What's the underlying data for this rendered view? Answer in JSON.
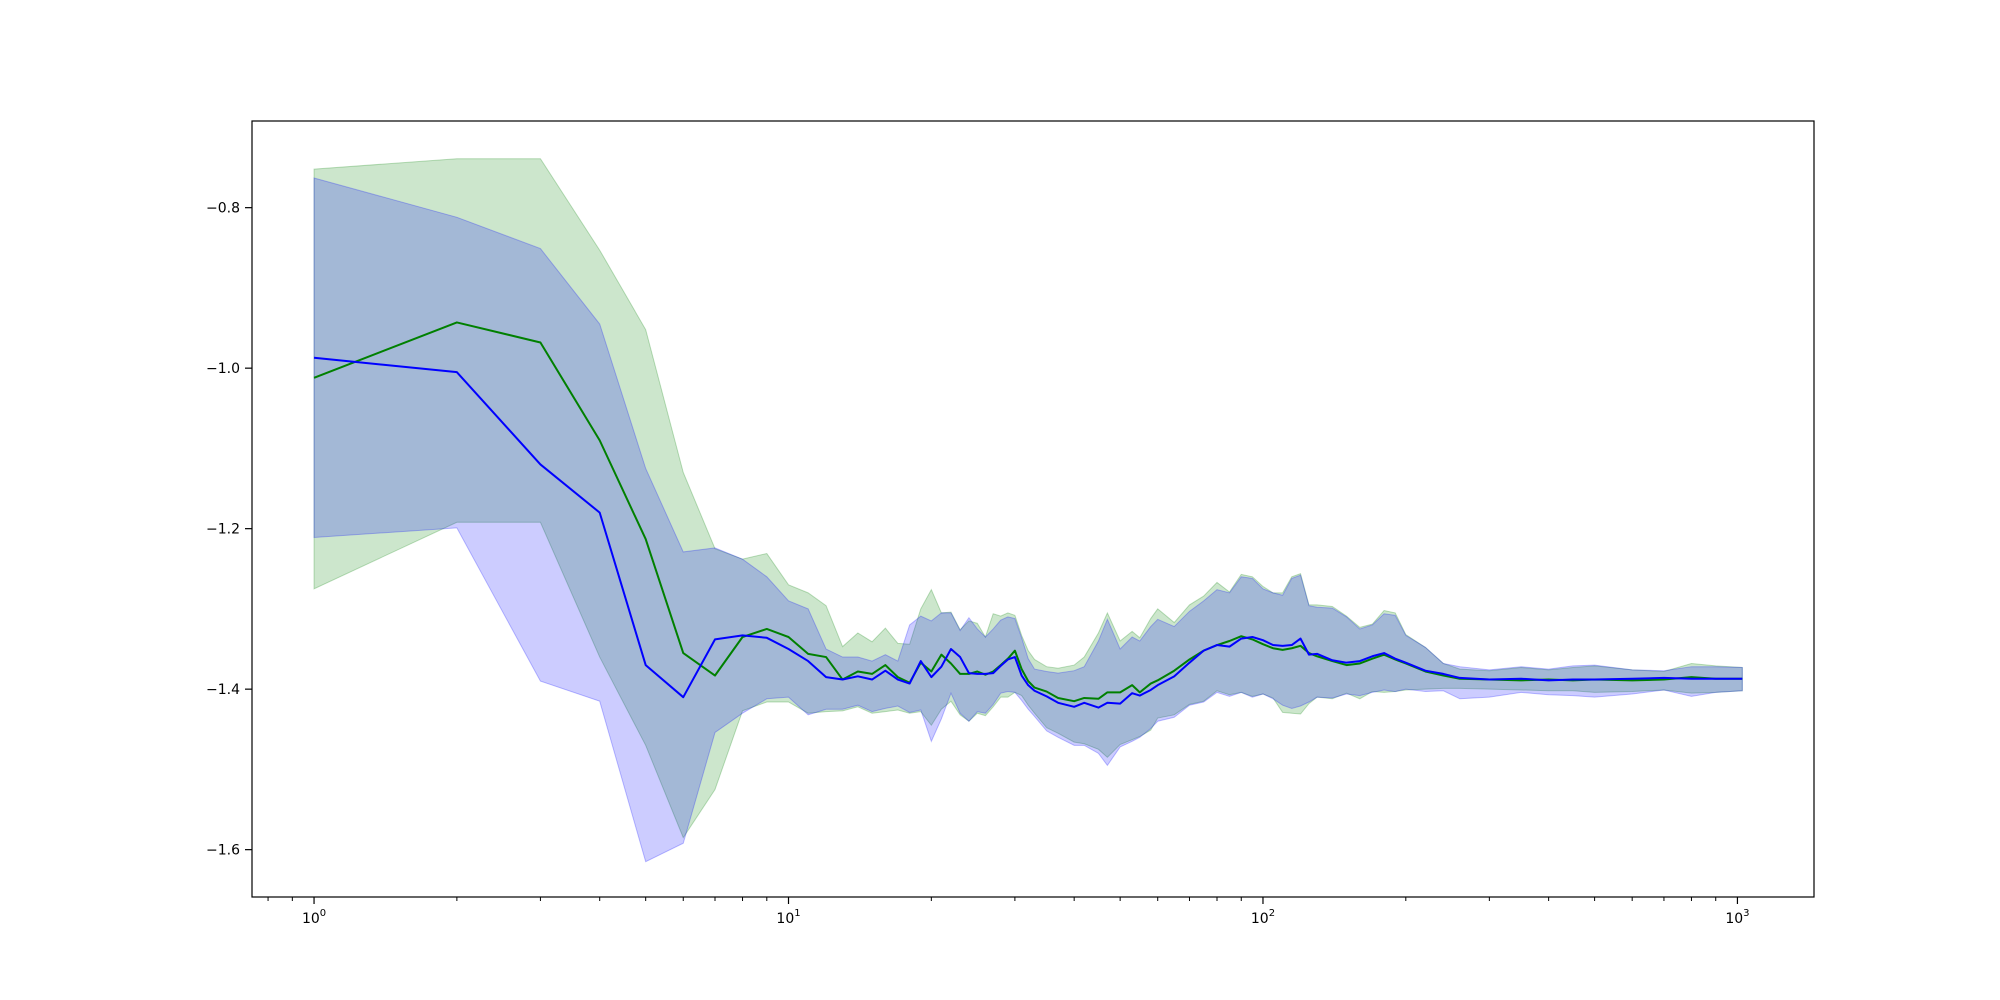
{
  "chart_data": {
    "type": "line",
    "title": "",
    "xlabel": "",
    "ylabel": "",
    "xscale": "log",
    "xlim": [
      0.74,
      1450
    ],
    "ylim": [
      -1.659,
      -0.692
    ],
    "grid": false,
    "legend": "none",
    "x_ticks": [
      {
        "value": 1,
        "base": "10",
        "exp": "0"
      },
      {
        "value": 10,
        "base": "10",
        "exp": "1"
      },
      {
        "value": 100,
        "base": "10",
        "exp": "2"
      },
      {
        "value": 1000,
        "base": "10",
        "exp": "3"
      }
    ],
    "y_ticks": [
      {
        "value": -0.8,
        "label": "−0.8"
      },
      {
        "value": -1.0,
        "label": "−1.0"
      },
      {
        "value": -1.2,
        "label": "−1.2"
      },
      {
        "value": -1.4,
        "label": "−1.4"
      },
      {
        "value": -1.6,
        "label": "−1.6"
      }
    ],
    "series": [
      {
        "color": "#008000",
        "band_color": "#008000",
        "x": [
          1,
          2,
          3,
          4,
          5,
          6,
          7,
          8,
          9,
          10,
          11,
          12,
          13,
          14,
          15,
          16,
          17,
          18,
          19,
          20,
          21,
          22,
          23,
          24,
          25,
          26,
          27,
          28,
          29,
          30,
          31,
          32,
          33,
          35,
          37,
          40,
          42,
          45,
          47,
          50,
          53,
          55,
          58,
          60,
          65,
          70,
          75,
          80,
          85,
          90,
          95,
          100,
          105,
          110,
          115,
          120,
          125,
          130,
          140,
          150,
          160,
          170,
          180,
          190,
          200,
          220,
          240,
          260,
          300,
          350,
          400,
          450,
          500,
          600,
          700,
          800,
          900,
          1024
        ],
        "y": [
          -1.012,
          -0.943,
          -0.968,
          -1.09,
          -1.213,
          -1.355,
          -1.383,
          -1.335,
          -1.325,
          -1.335,
          -1.356,
          -1.36,
          -1.388,
          -1.378,
          -1.381,
          -1.37,
          -1.385,
          -1.392,
          -1.367,
          -1.378,
          -1.357,
          -1.368,
          -1.381,
          -1.381,
          -1.378,
          -1.382,
          -1.378,
          -1.37,
          -1.362,
          -1.352,
          -1.375,
          -1.39,
          -1.398,
          -1.403,
          -1.411,
          -1.415,
          -1.411,
          -1.412,
          -1.404,
          -1.404,
          -1.395,
          -1.404,
          -1.393,
          -1.389,
          -1.377,
          -1.363,
          -1.352,
          -1.345,
          -1.34,
          -1.334,
          -1.338,
          -1.344,
          -1.349,
          -1.351,
          -1.349,
          -1.346,
          -1.355,
          -1.359,
          -1.365,
          -1.37,
          -1.368,
          -1.362,
          -1.357,
          -1.363,
          -1.368,
          -1.378,
          -1.383,
          -1.387,
          -1.388,
          -1.389,
          -1.388,
          -1.389,
          -1.388,
          -1.389,
          -1.388,
          -1.385,
          -1.387,
          -1.387
        ],
        "upper": [
          -0.752,
          -0.739,
          -0.739,
          -0.853,
          -0.952,
          -1.13,
          -1.225,
          -1.238,
          -1.231,
          -1.27,
          -1.28,
          -1.296,
          -1.347,
          -1.33,
          -1.341,
          -1.324,
          -1.343,
          -1.344,
          -1.3,
          -1.276,
          -1.305,
          -1.304,
          -1.326,
          -1.315,
          -1.318,
          -1.335,
          -1.306,
          -1.309,
          -1.305,
          -1.308,
          -1.333,
          -1.352,
          -1.363,
          -1.372,
          -1.374,
          -1.37,
          -1.36,
          -1.33,
          -1.305,
          -1.34,
          -1.328,
          -1.336,
          -1.312,
          -1.3,
          -1.317,
          -1.295,
          -1.284,
          -1.267,
          -1.279,
          -1.257,
          -1.26,
          -1.272,
          -1.28,
          -1.28,
          -1.26,
          -1.256,
          -1.295,
          -1.295,
          -1.297,
          -1.309,
          -1.323,
          -1.319,
          -1.302,
          -1.305,
          -1.332,
          -1.348,
          -1.368,
          -1.375,
          -1.377,
          -1.373,
          -1.376,
          -1.373,
          -1.371,
          -1.376,
          -1.378,
          -1.368,
          -1.371,
          -1.373
        ],
        "lower": [
          -1.275,
          -1.192,
          -1.192,
          -1.36,
          -1.47,
          -1.585,
          -1.525,
          -1.427,
          -1.416,
          -1.416,
          -1.43,
          -1.428,
          -1.427,
          -1.422,
          -1.43,
          -1.428,
          -1.426,
          -1.43,
          -1.428,
          -1.445,
          -1.425,
          -1.415,
          -1.432,
          -1.44,
          -1.43,
          -1.433,
          -1.422,
          -1.41,
          -1.41,
          -1.404,
          -1.408,
          -1.42,
          -1.43,
          -1.448,
          -1.455,
          -1.466,
          -1.468,
          -1.475,
          -1.485,
          -1.469,
          -1.463,
          -1.459,
          -1.451,
          -1.436,
          -1.432,
          -1.419,
          -1.415,
          -1.402,
          -1.407,
          -1.404,
          -1.409,
          -1.406,
          -1.411,
          -1.429,
          -1.43,
          -1.431,
          -1.418,
          -1.41,
          -1.412,
          -1.405,
          -1.412,
          -1.403,
          -1.404,
          -1.403,
          -1.401,
          -1.4,
          -1.399,
          -1.399,
          -1.4,
          -1.401,
          -1.402,
          -1.402,
          -1.404,
          -1.403,
          -1.401,
          -1.405,
          -1.404,
          -1.402
        ]
      },
      {
        "color": "#0000ff",
        "band_color": "#0000ff",
        "x": [
          1,
          2,
          3,
          4,
          5,
          6,
          7,
          8,
          9,
          10,
          11,
          12,
          13,
          14,
          15,
          16,
          17,
          18,
          19,
          20,
          21,
          22,
          23,
          24,
          25,
          26,
          27,
          28,
          29,
          30,
          31,
          32,
          33,
          35,
          37,
          40,
          42,
          45,
          47,
          50,
          53,
          55,
          58,
          60,
          65,
          70,
          75,
          80,
          85,
          90,
          95,
          100,
          105,
          110,
          115,
          120,
          125,
          130,
          140,
          150,
          160,
          170,
          180,
          190,
          200,
          220,
          240,
          260,
          300,
          350,
          400,
          450,
          500,
          600,
          700,
          800,
          900,
          1024
        ],
        "y": [
          -0.987,
          -1.005,
          -1.12,
          -1.18,
          -1.37,
          -1.41,
          -1.338,
          -1.333,
          -1.336,
          -1.35,
          -1.365,
          -1.385,
          -1.388,
          -1.384,
          -1.388,
          -1.377,
          -1.388,
          -1.393,
          -1.365,
          -1.385,
          -1.372,
          -1.35,
          -1.36,
          -1.38,
          -1.381,
          -1.381,
          -1.38,
          -1.371,
          -1.363,
          -1.36,
          -1.383,
          -1.395,
          -1.402,
          -1.409,
          -1.417,
          -1.422,
          -1.417,
          -1.423,
          -1.417,
          -1.418,
          -1.405,
          -1.408,
          -1.401,
          -1.395,
          -1.384,
          -1.367,
          -1.352,
          -1.345,
          -1.347,
          -1.337,
          -1.335,
          -1.339,
          -1.345,
          -1.346,
          -1.345,
          -1.337,
          -1.357,
          -1.356,
          -1.364,
          -1.367,
          -1.365,
          -1.359,
          -1.355,
          -1.362,
          -1.367,
          -1.377,
          -1.381,
          -1.386,
          -1.388,
          -1.387,
          -1.389,
          -1.388,
          -1.388,
          -1.387,
          -1.386,
          -1.387,
          -1.387,
          -1.387
        ],
        "upper": [
          -0.763,
          -0.812,
          -0.851,
          -0.945,
          -1.125,
          -1.229,
          -1.224,
          -1.238,
          -1.26,
          -1.29,
          -1.3,
          -1.35,
          -1.36,
          -1.36,
          -1.365,
          -1.357,
          -1.365,
          -1.32,
          -1.309,
          -1.315,
          -1.305,
          -1.305,
          -1.327,
          -1.311,
          -1.325,
          -1.335,
          -1.325,
          -1.314,
          -1.31,
          -1.312,
          -1.336,
          -1.362,
          -1.375,
          -1.378,
          -1.38,
          -1.377,
          -1.372,
          -1.34,
          -1.313,
          -1.35,
          -1.335,
          -1.34,
          -1.322,
          -1.313,
          -1.322,
          -1.303,
          -1.29,
          -1.276,
          -1.28,
          -1.26,
          -1.262,
          -1.275,
          -1.28,
          -1.283,
          -1.262,
          -1.258,
          -1.296,
          -1.298,
          -1.299,
          -1.31,
          -1.325,
          -1.32,
          -1.306,
          -1.308,
          -1.333,
          -1.348,
          -1.368,
          -1.372,
          -1.376,
          -1.372,
          -1.375,
          -1.371,
          -1.37,
          -1.376,
          -1.377,
          -1.372,
          -1.372,
          -1.373
        ],
        "lower": [
          -1.211,
          -1.199,
          -1.39,
          -1.415,
          -1.615,
          -1.592,
          -1.454,
          -1.43,
          -1.412,
          -1.41,
          -1.432,
          -1.425,
          -1.425,
          -1.42,
          -1.428,
          -1.424,
          -1.421,
          -1.429,
          -1.426,
          -1.465,
          -1.437,
          -1.405,
          -1.43,
          -1.44,
          -1.428,
          -1.43,
          -1.419,
          -1.405,
          -1.403,
          -1.404,
          -1.414,
          -1.425,
          -1.434,
          -1.452,
          -1.46,
          -1.47,
          -1.47,
          -1.48,
          -1.495,
          -1.472,
          -1.465,
          -1.46,
          -1.449,
          -1.44,
          -1.435,
          -1.42,
          -1.416,
          -1.404,
          -1.409,
          -1.404,
          -1.41,
          -1.406,
          -1.412,
          -1.42,
          -1.424,
          -1.421,
          -1.416,
          -1.41,
          -1.411,
          -1.406,
          -1.408,
          -1.404,
          -1.401,
          -1.403,
          -1.4,
          -1.403,
          -1.402,
          -1.412,
          -1.41,
          -1.404,
          -1.407,
          -1.408,
          -1.41,
          -1.406,
          -1.401,
          -1.409,
          -1.404,
          -1.402
        ]
      }
    ]
  }
}
